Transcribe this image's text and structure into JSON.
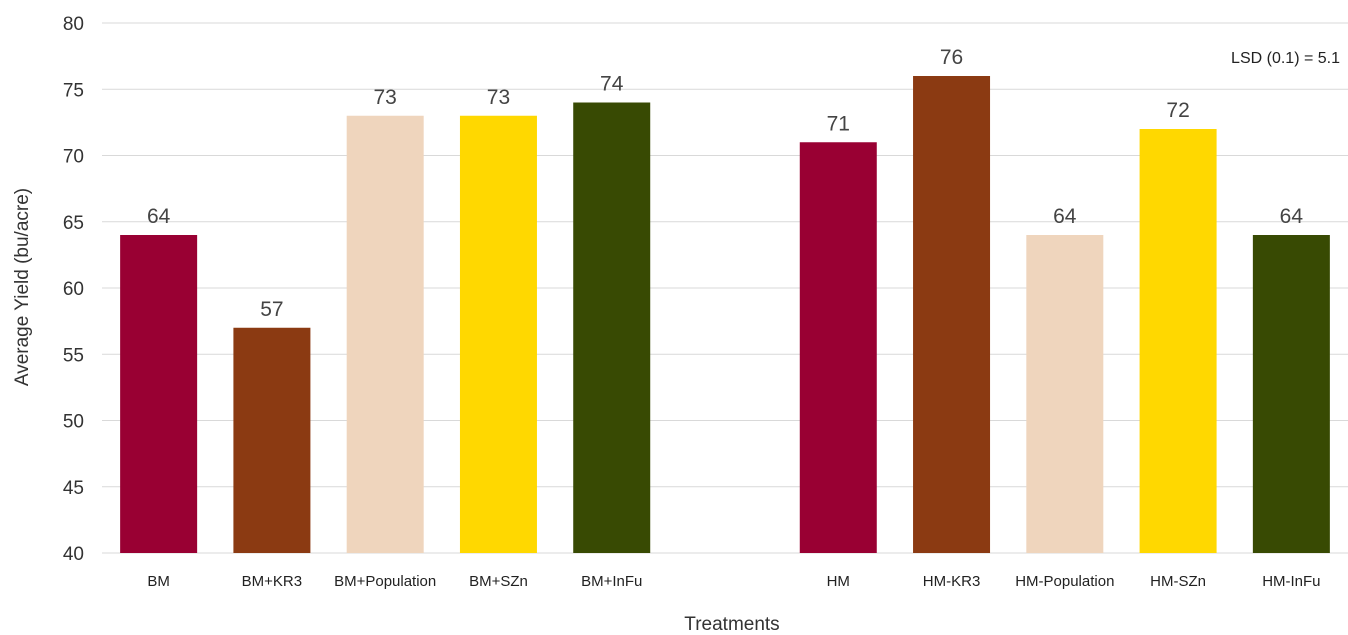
{
  "chart_data": {
    "type": "bar",
    "categories": [
      "BM",
      "BM+KR3",
      "BM+Population",
      "BM+SZn",
      "BM+InFu",
      "",
      "HM",
      "HM-KR3",
      "HM-Population",
      "HM-SZn",
      "HM-InFu"
    ],
    "values": [
      64,
      57,
      73,
      73,
      74,
      null,
      71,
      76,
      64,
      72,
      64
    ],
    "data_labels": [
      "64",
      "57",
      "73",
      "73",
      "74",
      "",
      "71",
      "76",
      "64",
      "72",
      "64"
    ],
    "colors": [
      "#990033",
      "#8B3A12",
      "#EFD5BD",
      "#FFD800",
      "#384A03",
      "",
      "#990033",
      "#8B3A12",
      "#EFD5BD",
      "#FFD800",
      "#384A03"
    ],
    "xlabel": "Treatments",
    "ylabel": "Average Yield (bu/acre)",
    "ylim": [
      40,
      80
    ],
    "yticks": [
      40,
      45,
      50,
      55,
      60,
      65,
      70,
      75,
      80
    ],
    "grid": true,
    "annotation": "LSD (0.1) = 5.1"
  }
}
